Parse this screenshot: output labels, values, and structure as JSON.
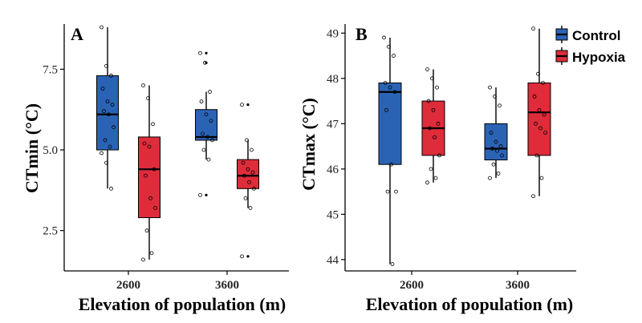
{
  "chart_data": [
    {
      "panel": "A",
      "type": "box",
      "ylabel": "CTmin (°C)",
      "xlabel": "Elevation of population (m)",
      "categories": [
        "2600",
        "3600"
      ],
      "ylim": [
        1.25,
        8.9
      ],
      "yticks": [
        2.5,
        5.0,
        7.5
      ],
      "ytick_labels": [
        "2.5",
        "5.0",
        "7.5"
      ],
      "groups": [
        {
          "category": "2600",
          "series": "Control",
          "whislo": 3.8,
          "q1": 5.0,
          "med": 6.1,
          "q3": 7.3,
          "whishi": 8.8,
          "outliers": [],
          "points": [
            8.8,
            7.6,
            7.3,
            6.9,
            6.5,
            6.4,
            6.2,
            6.1,
            5.7,
            5.3,
            5.1,
            4.9,
            4.6,
            3.8
          ]
        },
        {
          "category": "2600",
          "series": "Hypoxia",
          "whislo": 1.6,
          "q1": 2.9,
          "med": 4.4,
          "q3": 5.4,
          "whishi": 7.0,
          "outliers": [],
          "points": [
            7.0,
            6.6,
            5.8,
            5.2,
            5.1,
            4.4,
            4.2,
            3.5,
            3.2,
            2.5,
            1.8,
            1.6
          ]
        },
        {
          "category": "3600",
          "series": "Control",
          "whislo": 4.7,
          "q1": 5.3,
          "med": 5.4,
          "q3": 6.25,
          "whishi": 6.8,
          "outliers": [
            8.0,
            7.7,
            3.6
          ],
          "points": [
            8.0,
            7.7,
            6.8,
            6.5,
            6.1,
            5.9,
            5.5,
            5.4,
            5.3,
            5.0,
            4.7,
            3.6
          ]
        },
        {
          "category": "3600",
          "series": "Hypoxia",
          "whislo": 3.2,
          "q1": 3.8,
          "med": 4.2,
          "q3": 4.7,
          "whishi": 5.3,
          "outliers": [
            6.4,
            1.7
          ],
          "points": [
            6.4,
            5.3,
            5.0,
            4.6,
            4.4,
            4.3,
            4.2,
            4.0,
            3.8,
            3.5,
            3.2,
            1.7
          ]
        }
      ]
    },
    {
      "panel": "B",
      "type": "box",
      "ylabel": "CTmax (°C)",
      "xlabel": "Elevation of population (m)",
      "categories": [
        "2600",
        "3600"
      ],
      "ylim": [
        43.75,
        49.2
      ],
      "yticks": [
        44,
        45,
        46,
        47,
        48,
        49
      ],
      "ytick_labels": [
        "44",
        "45",
        "46",
        "47",
        "48",
        "49"
      ],
      "groups": [
        {
          "category": "2600",
          "series": "Control",
          "whislo": 43.9,
          "q1": 46.1,
          "med": 47.7,
          "q3": 47.9,
          "whishi": 48.9,
          "outliers": [],
          "points": [
            48.9,
            48.7,
            48.5,
            47.9,
            47.8,
            47.7,
            47.3,
            46.1,
            45.5,
            45.5,
            43.9
          ]
        },
        {
          "category": "2600",
          "series": "Hypoxia",
          "whislo": 45.7,
          "q1": 46.3,
          "med": 46.9,
          "q3": 47.5,
          "whishi": 48.2,
          "outliers": [],
          "points": [
            48.2,
            48.0,
            47.8,
            47.5,
            47.3,
            47.0,
            46.9,
            46.7,
            46.3,
            46.0,
            45.8,
            45.7
          ]
        },
        {
          "category": "3600",
          "series": "Control",
          "whislo": 45.8,
          "q1": 46.2,
          "med": 46.45,
          "q3": 47.0,
          "whishi": 47.8,
          "outliers": [],
          "points": [
            47.8,
            47.6,
            47.4,
            46.8,
            46.6,
            46.5,
            46.45,
            46.4,
            46.3,
            46.1,
            45.9,
            45.8
          ]
        },
        {
          "category": "3600",
          "series": "Hypoxia",
          "whislo": 45.4,
          "q1": 46.3,
          "med": 47.25,
          "q3": 47.9,
          "whishi": 49.1,
          "outliers": [],
          "points": [
            49.1,
            48.1,
            47.9,
            47.6,
            47.3,
            47.2,
            47.0,
            46.9,
            46.8,
            46.3,
            45.8,
            45.4
          ]
        }
      ]
    }
  ],
  "legend": {
    "placement": "top-right",
    "entries": [
      {
        "name": "Control",
        "color": "#2b63b4"
      },
      {
        "name": "Hypoxia",
        "color": "#de2c3a"
      }
    ]
  },
  "colors": {
    "Control": "#2b63b4",
    "Hypoxia": "#de2c3a"
  }
}
